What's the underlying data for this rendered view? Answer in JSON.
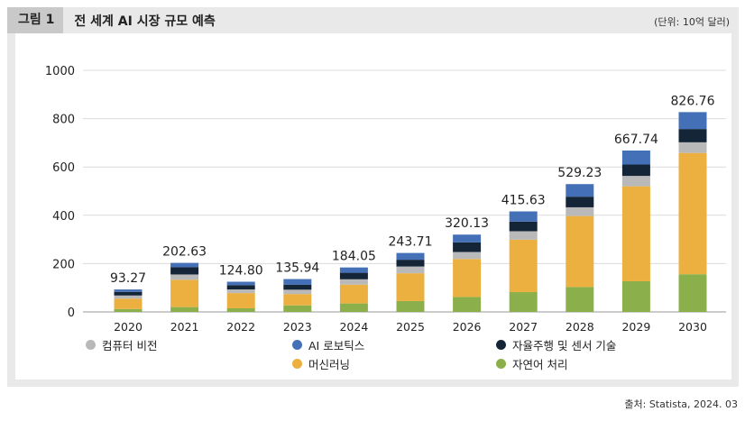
{
  "header": {
    "fig_label": "그림 1",
    "title": "전 세계 AI 시장 규모 예측",
    "unit": "(단위: 10억 달러)"
  },
  "source": "출처: Statista, 2024. 03",
  "colors": {
    "nlp": "#8bb04b",
    "ml": "#ebb040",
    "vision": "#b9b9b9",
    "auto": "#152538",
    "robotics": "#4470b8"
  },
  "chart_data": {
    "type": "bar",
    "stacked": true,
    "ylim": [
      0,
      1000
    ],
    "yticks": [
      "0",
      "200",
      "400",
      "600",
      "800",
      "1000"
    ],
    "yticks_values": [
      0,
      200,
      400,
      600,
      800,
      1000
    ],
    "categories": [
      "2020",
      "2021",
      "2022",
      "2023",
      "2024",
      "2025",
      "2026",
      "2027",
      "2028",
      "2029",
      "2030"
    ],
    "totals": [
      "93.27",
      "202.63",
      "124.80",
      "135.94",
      "184.05",
      "243.71",
      "320.13",
      "415.63",
      "529.23",
      "667.74",
      "826.76"
    ],
    "grid": true,
    "legend_position": "bottom",
    "series": [
      {
        "name": "자연어 처리",
        "key": "nlp",
        "values": [
          12,
          20,
          15,
          27,
          35,
          45,
          62,
          82,
          103,
          127,
          156
        ]
      },
      {
        "name": "머신러닝",
        "key": "ml",
        "values": [
          43,
          113,
          63,
          47,
          78,
          115,
          157,
          217,
          294,
          393,
          502
        ]
      },
      {
        "name": "컴퓨터 비전",
        "key": "vision",
        "values": [
          13,
          22,
          15,
          18,
          22,
          28,
          29,
          35,
          36,
          43,
          44
        ]
      },
      {
        "name": "자율주행 및 센서 기술",
        "key": "auto",
        "values": [
          15,
          30,
          18,
          21,
          27,
          28,
          40,
          40,
          44,
          47,
          55
        ]
      },
      {
        "name": "AI 로보틱스",
        "key": "robotics",
        "values": [
          10,
          18,
          14,
          23,
          22,
          28,
          32,
          42,
          52,
          58,
          70
        ]
      }
    ]
  }
}
